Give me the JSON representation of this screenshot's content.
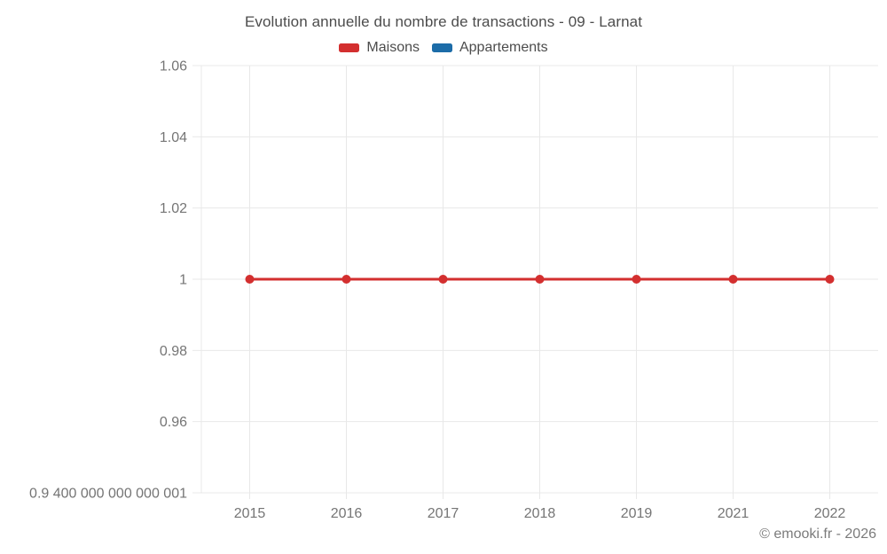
{
  "header": {
    "title": "Evolution annuelle du nombre de transactions - 09 - Larnat"
  },
  "legend": {
    "items": [
      {
        "label": "Maisons",
        "color": "#d32f2f"
      },
      {
        "label": "Appartements",
        "color": "#1c6ca8"
      }
    ]
  },
  "footer": {
    "credit": "© emooki.fr - 2026"
  },
  "colors": {
    "gridline": "#e8e8e8",
    "axis_text": "#757575",
    "maisons": "#d32f2f",
    "appartements": "#1c6ca8"
  },
  "chart_data": {
    "type": "line",
    "title": "Evolution annuelle du nombre de transactions - 09 - Larnat",
    "categories": [
      "2015",
      "2016",
      "2017",
      "2018",
      "2019",
      "2021",
      "2022"
    ],
    "series": [
      {
        "name": "Maisons",
        "color": "#d32f2f",
        "values": [
          1,
          1,
          1,
          1,
          1,
          1,
          1
        ]
      },
      {
        "name": "Appartements",
        "color": "#1c6ca8",
        "values": []
      }
    ],
    "xlabel": "",
    "ylabel": "",
    "y_axis": {
      "min": 0.9400000000000001,
      "max": 1.06,
      "ticks": [
        1.06,
        1.04,
        1.02,
        1,
        0.98,
        0.96,
        0.9400000000000001
      ],
      "tick_labels": [
        "1.06",
        "1.04",
        "1.02",
        "1",
        "0.98",
        "0.96",
        "0.9 400 000 000 000 001"
      ]
    },
    "grid": true,
    "legend_position": "top",
    "marker": "circle"
  }
}
